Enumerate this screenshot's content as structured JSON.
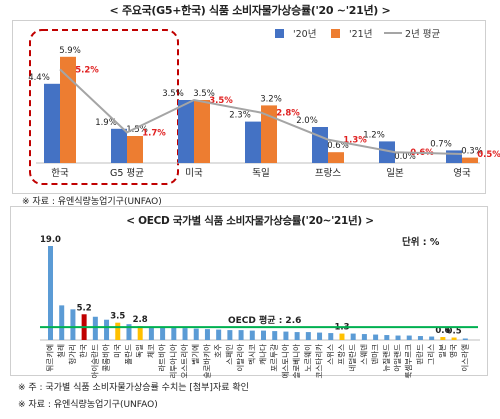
{
  "charts_meta": {
    "top_title": "< 주요국(G5+한국) 식품 소비자물가상승률('20 ~'21년) >",
    "top_source": "※ 자료 : 유엔식량농업기구(UNFAO)",
    "bottom_title": "< OECD 국가별 식품 소비자물가상승률('20~'21년) >",
    "bottom_unit": "단위 : %",
    "bottom_note": "※ 주 : 국가별 식품 소비자물가상승률 수치는 [첨부]자료 확인",
    "bottom_source": "※ 자료 : 유엔식량농업기구(UNFAO)"
  },
  "chart_data": [
    {
      "type": "bar",
      "categories": [
        "한국",
        "G5 평균",
        "미국",
        "독일",
        "프랑스",
        "일본",
        "영국"
      ],
      "series": [
        {
          "name": "'20년",
          "color": "#4472C4",
          "values": [
            4.4,
            1.9,
            3.5,
            2.3,
            2.0,
            1.2,
            0.7
          ]
        },
        {
          "name": "'21년",
          "color": "#ED7D31",
          "values": [
            5.9,
            1.5,
            3.5,
            3.2,
            0.6,
            0.0,
            0.3
          ]
        },
        {
          "name": "2년 평균",
          "color": "#A5A5A5",
          "line": true,
          "values": [
            5.2,
            1.7,
            3.5,
            2.8,
            1.3,
            0.6,
            0.5
          ]
        }
      ],
      "ylim": [
        0,
        7
      ],
      "legend": "top-right",
      "highlight": "한국, G5 평균"
    },
    {
      "type": "bar",
      "categories": [
        "튀르키예",
        "칠레",
        "헝가리",
        "한국",
        "아이슬란드",
        "콜롬비아",
        "미국",
        "폴란드",
        "독일",
        "체코",
        "라트비아",
        "리투아니아",
        "오스트리아",
        "벨기에",
        "슬로바키아",
        "호주",
        "스페인",
        "이탈리아",
        "멕시코",
        "캐나다",
        "포르투갈",
        "에스토니아",
        "슬로베니아",
        "노르웨이",
        "코스타리카",
        "스위스",
        "프랑스",
        "네덜란드",
        "스웨덴",
        "덴마크",
        "뉴질랜드",
        "아일랜드",
        "룩셈부르크",
        "핀란드",
        "그리스",
        "일본",
        "영국",
        "이스라엘"
      ],
      "values": [
        19.0,
        7.0,
        6.2,
        5.2,
        4.7,
        4.1,
        3.5,
        3.2,
        2.8,
        2.7,
        2.6,
        2.5,
        2.4,
        2.3,
        2.2,
        2.1,
        2.0,
        2.0,
        1.9,
        1.9,
        1.8,
        1.7,
        1.6,
        1.6,
        1.5,
        1.4,
        1.3,
        1.3,
        1.2,
        1.1,
        1.0,
        0.9,
        0.9,
        0.8,
        0.7,
        0.6,
        0.5,
        0.3
      ],
      "labeled": {
        "튀르키예": "19.0",
        "한국": "5.2",
        "미국": "3.5",
        "독일": "2.8",
        "프랑스": "1.3",
        "일본": "0.6",
        "영국": "0.5"
      },
      "bar_colors": {
        "default": "#5B9BD5",
        "한국": "#C00000",
        "G5": "#FFC000"
      },
      "g5": [
        "미국",
        "독일",
        "프랑스",
        "일본",
        "영국"
      ],
      "reference_line": {
        "label": "OECD 평균 : 2.6",
        "value": 2.6,
        "color": "#00B050"
      },
      "ylim": [
        0,
        20
      ]
    }
  ]
}
